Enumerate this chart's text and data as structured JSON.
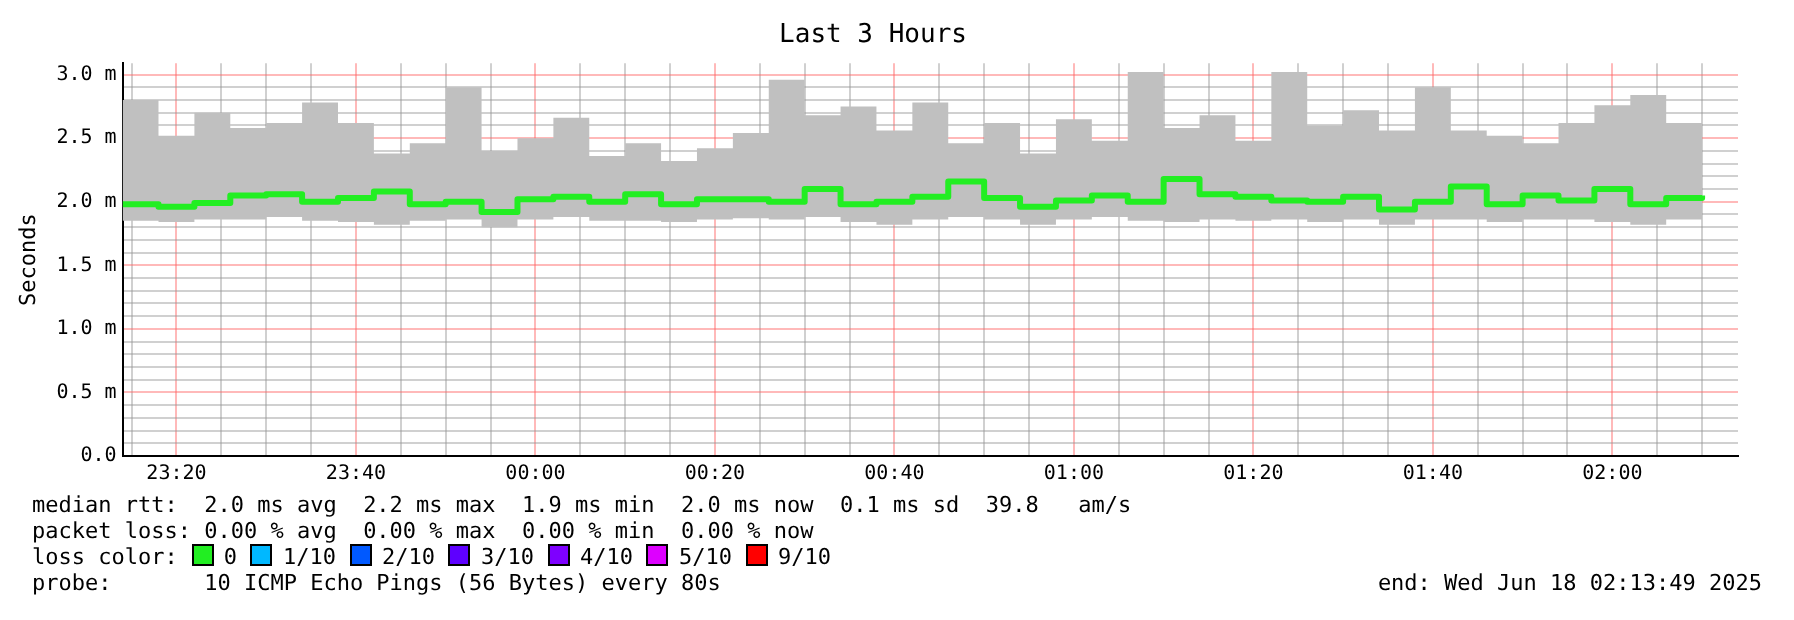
{
  "chart_data": {
    "type": "step",
    "title": "Last 3 Hours",
    "ylabel": "Seconds",
    "legend_title": "loss color:",
    "legend": "bottom",
    "grid": true,
    "x": [
      "2025-06-17T23:14",
      "2025-06-17T23:18",
      "2025-06-17T23:22",
      "2025-06-17T23:26",
      "2025-06-17T23:30",
      "2025-06-17T23:34",
      "2025-06-17T23:38",
      "2025-06-17T23:42",
      "2025-06-17T23:46",
      "2025-06-17T23:50",
      "2025-06-17T23:54",
      "2025-06-17T23:58",
      "2025-06-18T00:02",
      "2025-06-18T00:06",
      "2025-06-18T00:10",
      "2025-06-18T00:14",
      "2025-06-18T00:18",
      "2025-06-18T00:22",
      "2025-06-18T00:26",
      "2025-06-18T00:30",
      "2025-06-18T00:34",
      "2025-06-18T00:38",
      "2025-06-18T00:42",
      "2025-06-18T00:46",
      "2025-06-18T00:50",
      "2025-06-18T00:54",
      "2025-06-18T00:58",
      "2025-06-18T01:02",
      "2025-06-18T01:06",
      "2025-06-18T01:10",
      "2025-06-18T01:14",
      "2025-06-18T01:18",
      "2025-06-18T01:22",
      "2025-06-18T01:26",
      "2025-06-18T01:30",
      "2025-06-18T01:34",
      "2025-06-18T01:38",
      "2025-06-18T01:42",
      "2025-06-18T01:46",
      "2025-06-18T01:50",
      "2025-06-18T01:54",
      "2025-06-18T01:58",
      "2025-06-18T02:02",
      "2025-06-18T02:06",
      "2025-06-18T02:10"
    ],
    "xlim": [
      "2025-06-17T23:14",
      "2025-06-18T02:14"
    ],
    "xticks": [
      {
        "value": "2025-06-17T23:15",
        "label": null
      },
      {
        "value": "2025-06-17T23:20",
        "label": "23:20"
      },
      {
        "value": "2025-06-17T23:25",
        "label": null
      },
      {
        "value": "2025-06-17T23:30",
        "label": null
      },
      {
        "value": "2025-06-17T23:35",
        "label": null
      },
      {
        "value": "2025-06-17T23:40",
        "label": "23:40"
      },
      {
        "value": "2025-06-17T23:45",
        "label": null
      },
      {
        "value": "2025-06-17T23:50",
        "label": null
      },
      {
        "value": "2025-06-17T23:55",
        "label": null
      },
      {
        "value": "2025-06-18T00:00",
        "label": "00:00"
      },
      {
        "value": "2025-06-18T00:05",
        "label": null
      },
      {
        "value": "2025-06-18T00:10",
        "label": null
      },
      {
        "value": "2025-06-18T00:15",
        "label": null
      },
      {
        "value": "2025-06-18T00:20",
        "label": "00:20"
      },
      {
        "value": "2025-06-18T00:25",
        "label": null
      },
      {
        "value": "2025-06-18T00:30",
        "label": null
      },
      {
        "value": "2025-06-18T00:35",
        "label": null
      },
      {
        "value": "2025-06-18T00:40",
        "label": "00:40"
      },
      {
        "value": "2025-06-18T00:45",
        "label": null
      },
      {
        "value": "2025-06-18T00:50",
        "label": null
      },
      {
        "value": "2025-06-18T00:55",
        "label": null
      },
      {
        "value": "2025-06-18T01:00",
        "label": "01:00"
      },
      {
        "value": "2025-06-18T01:05",
        "label": null
      },
      {
        "value": "2025-06-18T01:10",
        "label": null
      },
      {
        "value": "2025-06-18T01:15",
        "label": null
      },
      {
        "value": "2025-06-18T01:20",
        "label": "01:20"
      },
      {
        "value": "2025-06-18T01:25",
        "label": null
      },
      {
        "value": "2025-06-18T01:30",
        "label": null
      },
      {
        "value": "2025-06-18T01:35",
        "label": null
      },
      {
        "value": "2025-06-18T01:40",
        "label": "01:40"
      },
      {
        "value": "2025-06-18T01:45",
        "label": null
      },
      {
        "value": "2025-06-18T01:50",
        "label": null
      },
      {
        "value": "2025-06-18T01:55",
        "label": null
      },
      {
        "value": "2025-06-18T02:00",
        "label": "02:00"
      },
      {
        "value": "2025-06-18T02:05",
        "label": null
      },
      {
        "value": "2025-06-18T02:10",
        "label": null
      }
    ],
    "ylim": [
      0,
      3.09
    ],
    "yticks": [
      {
        "value": 0,
        "label": "0.0"
      },
      {
        "value": 0.1,
        "label": null
      },
      {
        "value": 0.2,
        "label": null
      },
      {
        "value": 0.3,
        "label": null
      },
      {
        "value": 0.4,
        "label": null
      },
      {
        "value": 0.5,
        "label": "0.5 m"
      },
      {
        "value": 0.6,
        "label": null
      },
      {
        "value": 0.7,
        "label": null
      },
      {
        "value": 0.8,
        "label": null
      },
      {
        "value": 0.9,
        "label": null
      },
      {
        "value": 1,
        "label": "1.0 m"
      },
      {
        "value": 1.1,
        "label": null
      },
      {
        "value": 1.2,
        "label": null
      },
      {
        "value": 1.3,
        "label": null
      },
      {
        "value": 1.4,
        "label": null
      },
      {
        "value": 1.5,
        "label": "1.5 m"
      },
      {
        "value": 1.6,
        "label": null
      },
      {
        "value": 1.7,
        "label": null
      },
      {
        "value": 1.8,
        "label": null
      },
      {
        "value": 1.9,
        "label": null
      },
      {
        "value": 2,
        "label": "2.0 m"
      },
      {
        "value": 2.1,
        "label": null
      },
      {
        "value": 2.2,
        "label": null
      },
      {
        "value": 2.3,
        "label": null
      },
      {
        "value": 2.4,
        "label": null
      },
      {
        "value": 2.5,
        "label": "2.5 m"
      },
      {
        "value": 2.6,
        "label": null
      },
      {
        "value": 2.7,
        "label": null
      },
      {
        "value": 2.8,
        "label": null
      },
      {
        "value": 2.9,
        "label": null
      },
      {
        "value": 3,
        "label": "3.0 m"
      }
    ],
    "series": [
      {
        "name": "0",
        "color": "#22ee22",
        "values": [
          1.98,
          1.96,
          1.99,
          2.05,
          2.06,
          2.0,
          2.03,
          2.08,
          1.98,
          2.0,
          1.92,
          2.02,
          2.04,
          2.0,
          2.06,
          1.98,
          2.02,
          2.02,
          2.0,
          2.1,
          1.98,
          2.0,
          2.04,
          2.16,
          2.03,
          1.96,
          2.01,
          2.05,
          2.0,
          2.18,
          2.06,
          2.04,
          2.01,
          2.0,
          2.04,
          1.94,
          2.0,
          2.12,
          1.98,
          2.05,
          2.01,
          2.1,
          1.98,
          2.03,
          2.05
        ],
        "lower": [
          1.85,
          1.84,
          1.86,
          1.86,
          1.88,
          1.85,
          1.84,
          1.82,
          1.85,
          1.86,
          1.8,
          1.86,
          1.88,
          1.85,
          1.85,
          1.84,
          1.86,
          1.87,
          1.86,
          1.88,
          1.84,
          1.82,
          1.86,
          1.88,
          1.86,
          1.82,
          1.86,
          1.88,
          1.85,
          1.84,
          1.86,
          1.85,
          1.86,
          1.84,
          1.86,
          1.82,
          1.86,
          1.86,
          1.84,
          1.86,
          1.86,
          1.84,
          1.82,
          1.86,
          1.86
        ],
        "upper": [
          2.8,
          2.52,
          2.7,
          2.58,
          2.62,
          2.78,
          2.62,
          2.38,
          2.46,
          2.9,
          2.4,
          2.5,
          2.66,
          2.36,
          2.46,
          2.32,
          2.42,
          2.54,
          2.96,
          2.68,
          2.75,
          2.56,
          2.78,
          2.46,
          2.62,
          2.38,
          2.65,
          2.48,
          3.02,
          2.58,
          2.68,
          2.48,
          3.02,
          2.6,
          2.72,
          2.56,
          2.9,
          2.56,
          2.52,
          2.46,
          2.62,
          2.76,
          2.84,
          2.62,
          2.68
        ]
      },
      {
        "name": "1/10",
        "color": "#00b8ff",
        "values": [
          null,
          null,
          null,
          null,
          null,
          null,
          null,
          null,
          null,
          null,
          null,
          null,
          null,
          null,
          null,
          null,
          null,
          null,
          null,
          null,
          null,
          null,
          null,
          null,
          null,
          null,
          null,
          null,
          null,
          null,
          null,
          null,
          null,
          null,
          null,
          null,
          null,
          null,
          null,
          null,
          null,
          null,
          null,
          null,
          null
        ]
      },
      {
        "name": "2/10",
        "color": "#0059ff",
        "values": [
          null,
          null,
          null,
          null,
          null,
          null,
          null,
          null,
          null,
          null,
          null,
          null,
          null,
          null,
          null,
          null,
          null,
          null,
          null,
          null,
          null,
          null,
          null,
          null,
          null,
          null,
          null,
          null,
          null,
          null,
          null,
          null,
          null,
          null,
          null,
          null,
          null,
          null,
          null,
          null,
          null,
          null,
          null,
          null,
          null
        ]
      },
      {
        "name": "3/10",
        "color": "#5e00ff",
        "values": [
          null,
          null,
          null,
          null,
          null,
          null,
          null,
          null,
          null,
          null,
          null,
          null,
          null,
          null,
          null,
          null,
          null,
          null,
          null,
          null,
          null,
          null,
          null,
          null,
          null,
          null,
          null,
          null,
          null,
          null,
          null,
          null,
          null,
          null,
          null,
          null,
          null,
          null,
          null,
          null,
          null,
          null,
          null,
          null,
          null
        ]
      },
      {
        "name": "4/10",
        "color": "#7e00ff",
        "values": [
          null,
          null,
          null,
          null,
          null,
          null,
          null,
          null,
          null,
          null,
          null,
          null,
          null,
          null,
          null,
          null,
          null,
          null,
          null,
          null,
          null,
          null,
          null,
          null,
          null,
          null,
          null,
          null,
          null,
          null,
          null,
          null,
          null,
          null,
          null,
          null,
          null,
          null,
          null,
          null,
          null,
          null,
          null,
          null,
          null
        ]
      },
      {
        "name": "5/10",
        "color": "#dd00ff",
        "values": [
          null,
          null,
          null,
          null,
          null,
          null,
          null,
          null,
          null,
          null,
          null,
          null,
          null,
          null,
          null,
          null,
          null,
          null,
          null,
          null,
          null,
          null,
          null,
          null,
          null,
          null,
          null,
          null,
          null,
          null,
          null,
          null,
          null,
          null,
          null,
          null,
          null,
          null,
          null,
          null,
          null,
          null,
          null,
          null,
          null
        ]
      },
      {
        "name": "9/10",
        "color": "#ff0000",
        "values": [
          null,
          null,
          null,
          null,
          null,
          null,
          null,
          null,
          null,
          null,
          null,
          null,
          null,
          null,
          null,
          null,
          null,
          null,
          null,
          null,
          null,
          null,
          null,
          null,
          null,
          null,
          null,
          null,
          null,
          null,
          null,
          null,
          null,
          null,
          null,
          null,
          null,
          null,
          null,
          null,
          null,
          null,
          null,
          null,
          null
        ]
      }
    ],
    "annotations": [
      "median rtt:  2.0 ms avg  2.2 ms max  1.9 ms min  2.0 ms now  0.1 ms sd  39.8   am/s",
      "packet loss: 0.00 % avg  0.00 % max  0.00 % min  0.00 % now",
      "probe:       10 ICMP Echo Pings (56 Bytes) every 80s",
      "end: Wed Jun 18 02:13:49 2025"
    ]
  }
}
